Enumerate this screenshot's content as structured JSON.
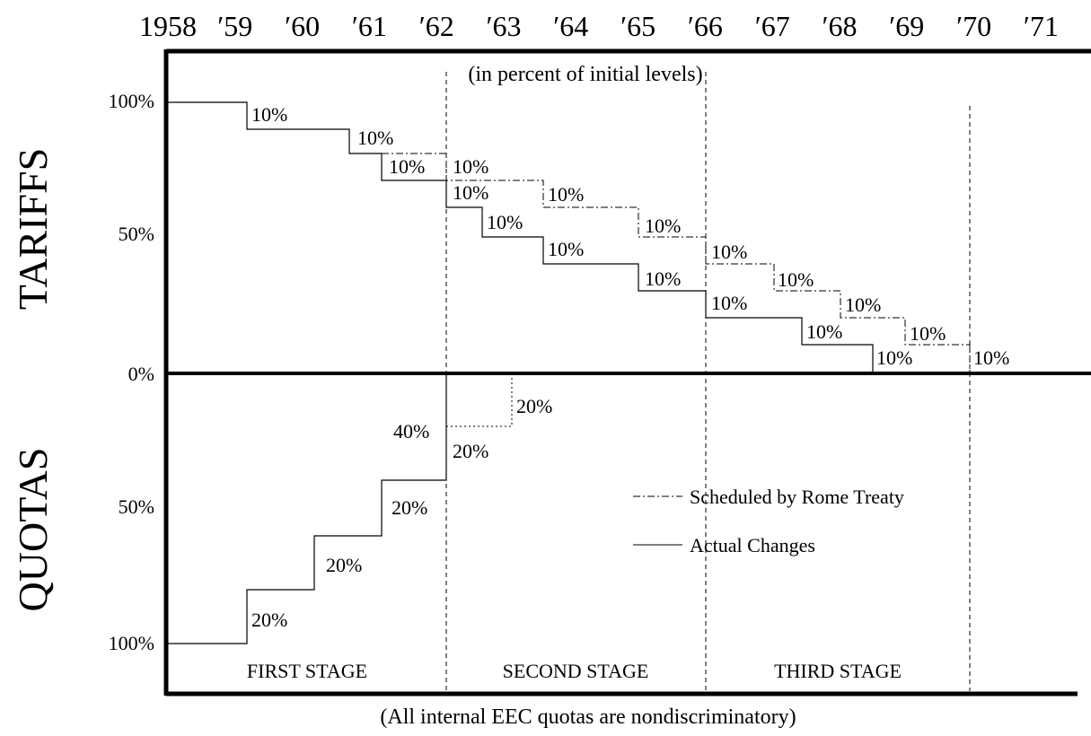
{
  "x_axis": {
    "labels": [
      "1958",
      "′59",
      "′60",
      "′61",
      "′62",
      "′63",
      "′64",
      "′65",
      "′66",
      "′67",
      "′68",
      "′69",
      "′70",
      "′71"
    ]
  },
  "subtitle": "(in percent of initial levels)",
  "footnote": "(All internal EEC quotas are nondiscriminatory)",
  "panels": {
    "tariffs": {
      "title": "TARIFFS",
      "ticks": [
        "100%",
        "50%",
        "0%"
      ]
    },
    "quotas": {
      "title": "QUOTAS",
      "ticks": [
        "50%",
        "100%"
      ]
    }
  },
  "tariff_steps": [
    "10%",
    "10%",
    "10%",
    "10%",
    "10%",
    "10%",
    "10%",
    "10%",
    "10%",
    "10%",
    "10%",
    "10%",
    "10%",
    "10%",
    "10%",
    "10%",
    "10%",
    "10%"
  ],
  "quota_steps": [
    "20%",
    "20%",
    "20%",
    "20%",
    "20%",
    "40%"
  ],
  "stages": [
    "FIRST STAGE",
    "SECOND STAGE",
    "THIRD STAGE"
  ],
  "legend": [
    "Scheduled by Rome Treaty",
    "Actual Changes"
  ]
}
